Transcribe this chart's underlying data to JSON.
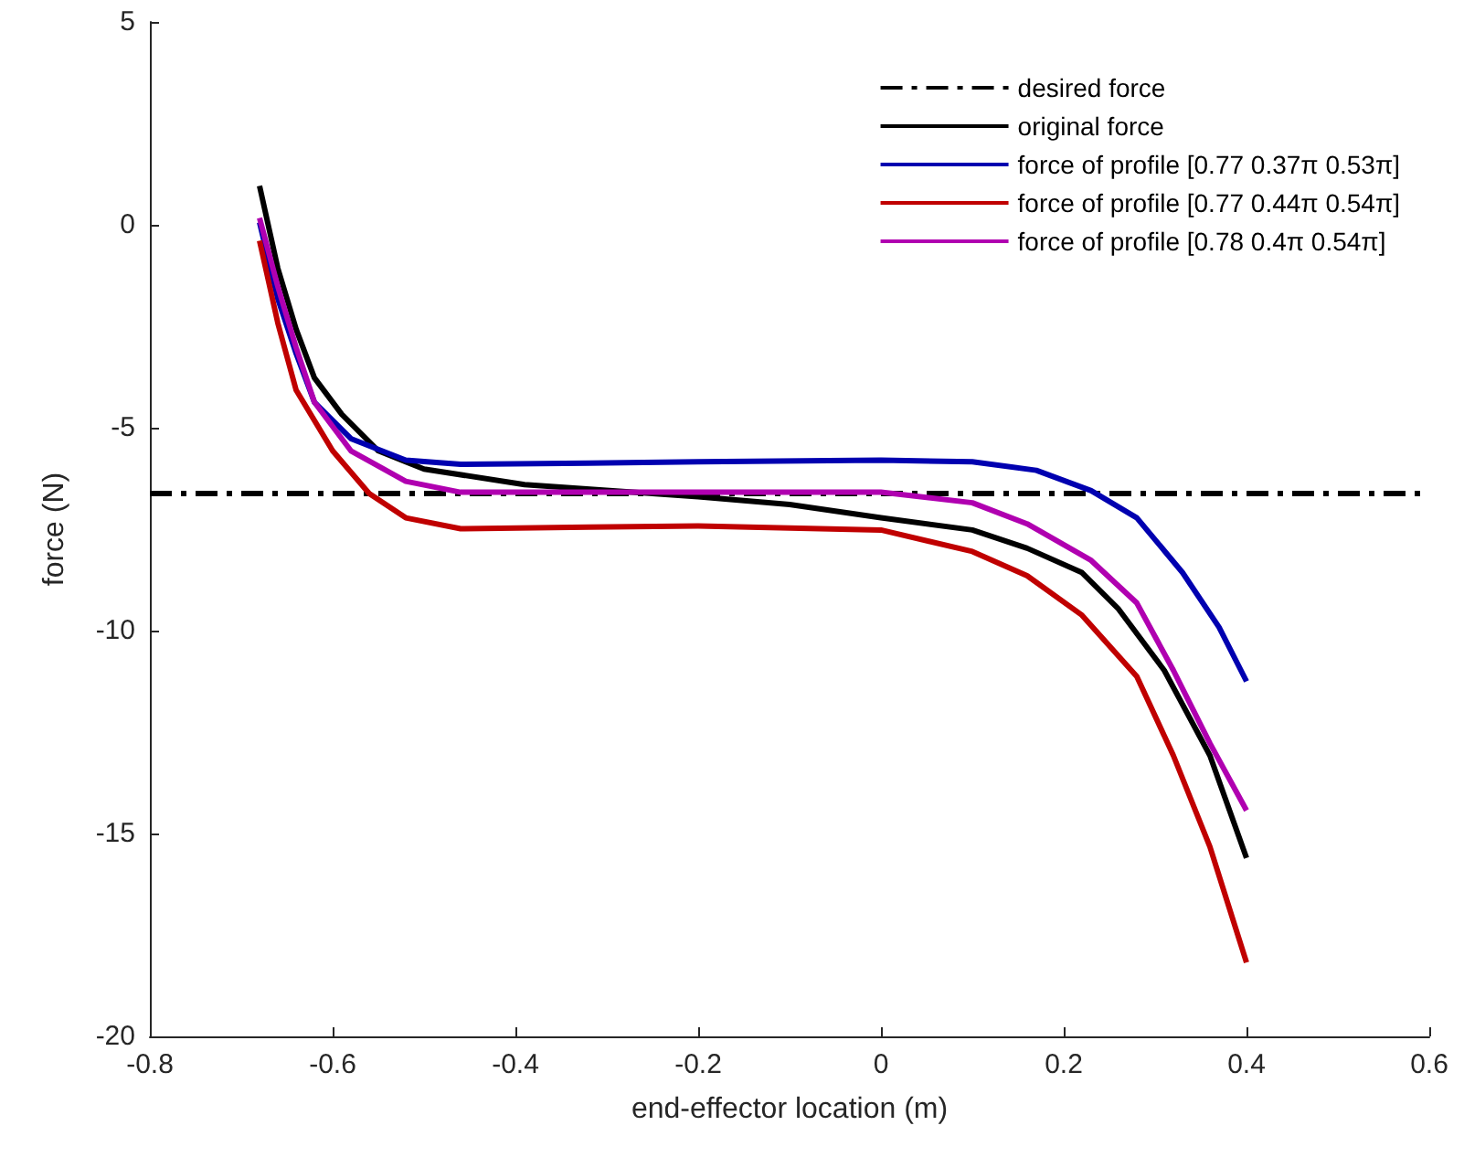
{
  "chart_data": {
    "type": "line",
    "xlabel": "end-effector location (m)",
    "ylabel": "force (N)",
    "xlim": [
      -0.8,
      0.6
    ],
    "xticks": [
      -0.8,
      -0.6,
      -0.4,
      -0.2,
      0,
      0.2,
      0.4,
      0.6
    ],
    "ylim": [
      -20,
      5
    ],
    "yticks": [
      -20,
      -15,
      -10,
      -5,
      0,
      5
    ],
    "grid": false,
    "legend": "top right",
    "marker": "none",
    "series": [
      {
        "name": "desired force",
        "color": "#000000",
        "line_style": "dashed",
        "x": [
          -0.8,
          0.6
        ],
        "values": [
          -6.62,
          -6.62
        ]
      },
      {
        "name": "original force",
        "color": "#000000",
        "line_style": "solid",
        "x": [
          -0.68,
          -0.66,
          -0.64,
          -0.62,
          -0.59,
          -0.55,
          -0.5,
          -0.39,
          -0.2,
          -0.1,
          0,
          0.1,
          0.16,
          0.22,
          0.26,
          0.31,
          0.36,
          0.4
        ],
        "values": [
          0.96,
          -1.07,
          -2.57,
          -3.77,
          -4.67,
          -5.57,
          -6.02,
          -6.4,
          -6.7,
          -6.89,
          -7.22,
          -7.52,
          -7.97,
          -8.57,
          -9.47,
          -10.98,
          -13.08,
          -15.6
        ]
      },
      {
        "name": "force of profile [0.77 0.37π 0.53π]",
        "color": "#0000b0",
        "line_style": "solid",
        "x": [
          -0.68,
          -0.66,
          -0.64,
          -0.62,
          -0.58,
          -0.52,
          -0.46,
          -0.32,
          -0.2,
          0,
          0.1,
          0.17,
          0.23,
          0.28,
          0.33,
          0.37,
          0.4
        ],
        "values": [
          0.06,
          -1.82,
          -3.17,
          -4.37,
          -5.27,
          -5.8,
          -5.9,
          -5.87,
          -5.84,
          -5.8,
          -5.84,
          -6.05,
          -6.55,
          -7.22,
          -8.57,
          -9.92,
          -11.25
        ]
      },
      {
        "name": "force of profile [0.77 0.44π 0.54π]",
        "color": "#c00000",
        "line_style": "solid",
        "x": [
          -0.68,
          -0.66,
          -0.64,
          -0.6,
          -0.56,
          -0.52,
          -0.46,
          -0.32,
          -0.2,
          0,
          0.1,
          0.16,
          0.22,
          0.28,
          0.32,
          0.36,
          0.4
        ],
        "values": [
          -0.39,
          -2.42,
          -4.07,
          -5.57,
          -6.62,
          -7.22,
          -7.49,
          -7.45,
          -7.42,
          -7.52,
          -8.05,
          -8.65,
          -9.62,
          -11.13,
          -13.08,
          -15.33,
          -18.18
        ]
      },
      {
        "name": "force of profile [0.78 0.4π 0.54π]",
        "color": "#b000b0",
        "line_style": "solid",
        "x": [
          -0.68,
          -0.66,
          -0.64,
          -0.62,
          -0.58,
          -0.52,
          -0.46,
          -0.2,
          0,
          0.1,
          0.16,
          0.23,
          0.28,
          0.32,
          0.36,
          0.4
        ],
        "values": [
          0.17,
          -1.52,
          -3.02,
          -4.37,
          -5.57,
          -6.32,
          -6.59,
          -6.59,
          -6.59,
          -6.85,
          -7.37,
          -8.27,
          -9.32,
          -10.98,
          -12.78,
          -14.43
        ]
      }
    ]
  }
}
